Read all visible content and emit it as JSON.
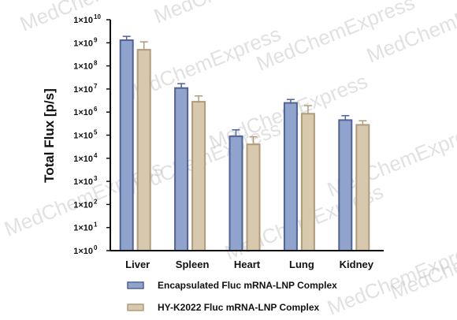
{
  "chart_data": {
    "type": "bar",
    "ylabel": "Total Flux [p/s]",
    "yscale": "log",
    "ylim": [
      1,
      10000000000
    ],
    "y_ticks": [
      {
        "value": 1,
        "mant": "1×10",
        "exp": "0"
      },
      {
        "value": 10,
        "mant": "1×10",
        "exp": "1"
      },
      {
        "value": 100,
        "mant": "1×10",
        "exp": "2"
      },
      {
        "value": 1000,
        "mant": "1×10",
        "exp": "3"
      },
      {
        "value": 10000,
        "mant": "1×10",
        "exp": "4"
      },
      {
        "value": 100000,
        "mant": "1×10",
        "exp": "5"
      },
      {
        "value": 1000000,
        "mant": "1×10",
        "exp": "6"
      },
      {
        "value": 10000000,
        "mant": "1×10",
        "exp": "7"
      },
      {
        "value": 100000000,
        "mant": "1×10",
        "exp": "8"
      },
      {
        "value": 1000000000,
        "mant": "1×10",
        "exp": "9"
      },
      {
        "value": 10000000000,
        "mant": "1×10",
        "exp": "10"
      }
    ],
    "categories": [
      "Liver",
      "Spleen",
      "Heart",
      "Lung",
      "Kidney"
    ],
    "series": [
      {
        "name": "Encapsulated Fluc mRNA-LNP Complex",
        "color": "#8fa3cc",
        "edge": "#4f6396",
        "values": [
          1300000000,
          11000000,
          90000,
          2500000,
          450000
        ],
        "errors_upper": [
          1900000000,
          17000000,
          170000,
          3500000,
          700000
        ]
      },
      {
        "name": "HY-K2022 Fluc mRNA-LNP Complex",
        "color": "#d8c8ae",
        "edge": "#b09b7a",
        "values": [
          500000000,
          2800000,
          40000,
          850000,
          280000
        ],
        "errors_upper": [
          1100000000,
          5000000,
          85000,
          1900000,
          420000
        ]
      }
    ],
    "legend_position": "bottom",
    "grid": false
  },
  "watermark": "MedChemExpress"
}
